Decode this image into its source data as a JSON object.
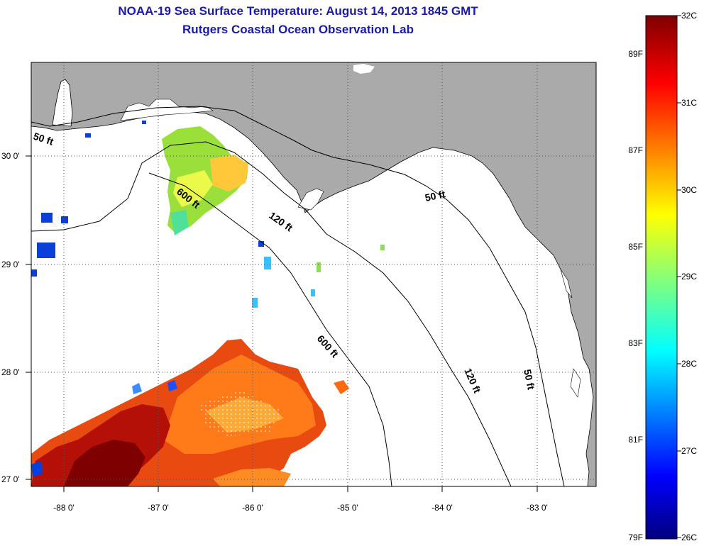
{
  "title": "NOAA-19 Sea Surface Temperature:  August 14, 2013 1845 GMT",
  "subtitle": "Rutgers Coastal Ocean Observation Lab",
  "x_ticks": [
    "-88 0'",
    "-87 0'",
    "-86 0'",
    "-85 0'",
    "-84 0'",
    "-83 0'"
  ],
  "y_ticks": [
    "30 0'",
    "29 0'",
    "28 0'",
    "27 0'"
  ],
  "contour_labels": [
    "50 ft",
    "600 ft",
    "120 ft",
    "50 ft",
    "600 ft",
    "120 ft",
    "50 ft"
  ],
  "colorbar": {
    "celsius_labels": [
      "32C",
      "31C",
      "30C",
      "29C",
      "28C",
      "27C",
      "26C"
    ],
    "fahrenheit_labels": [
      "89F",
      "87F",
      "85F",
      "83F",
      "81F",
      "79F"
    ]
  },
  "colors": {
    "land": "#aaaaaa",
    "title": "#1a1aa8"
  }
}
